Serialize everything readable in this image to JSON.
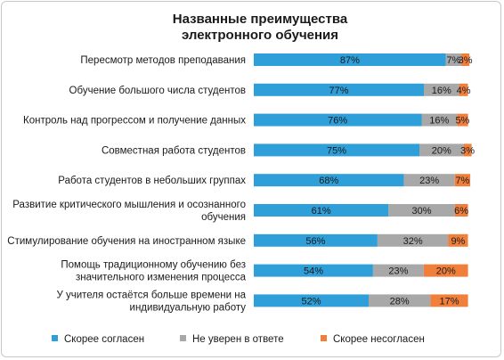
{
  "chart_data": {
    "type": "bar",
    "orientation": "horizontal",
    "stacked": "percent",
    "title_lines": [
      "Названные преимущества",
      "электронного обучения"
    ],
    "categories": [
      [
        "Пересмотр методов преподавания"
      ],
      [
        "Обучение большого числа студентов"
      ],
      [
        "Контроль над прогрессом и получение данных"
      ],
      [
        "Совместная работа студентов"
      ],
      [
        "Работа студентов в небольших группах"
      ],
      [
        "Развитие критического мышления и осознанного",
        "обучения"
      ],
      [
        "Стимулирование обучения на иностранном языке"
      ],
      [
        "Помощь традиционному обучению без",
        "значительного изменения процесса"
      ],
      [
        "У учителя остаётся больше времени на",
        "индивидуальную работу"
      ]
    ],
    "series": [
      {
        "name": "Скорее согласен",
        "color": "#2e9fd8",
        "values": [
          87,
          77,
          76,
          75,
          68,
          61,
          56,
          54,
          52
        ]
      },
      {
        "name": "Не уверен в ответе",
        "color": "#a8a8a8",
        "values": [
          7,
          16,
          16,
          20,
          23,
          30,
          32,
          23,
          28
        ]
      },
      {
        "name": "Скорее несогласен",
        "color": "#f07f3c",
        "values": [
          3,
          4,
          5,
          3,
          7,
          6,
          9,
          20,
          17
        ]
      }
    ],
    "value_suffix": "%",
    "xlim": [
      0,
      100
    ],
    "legend_position": "bottom",
    "grid": false
  }
}
